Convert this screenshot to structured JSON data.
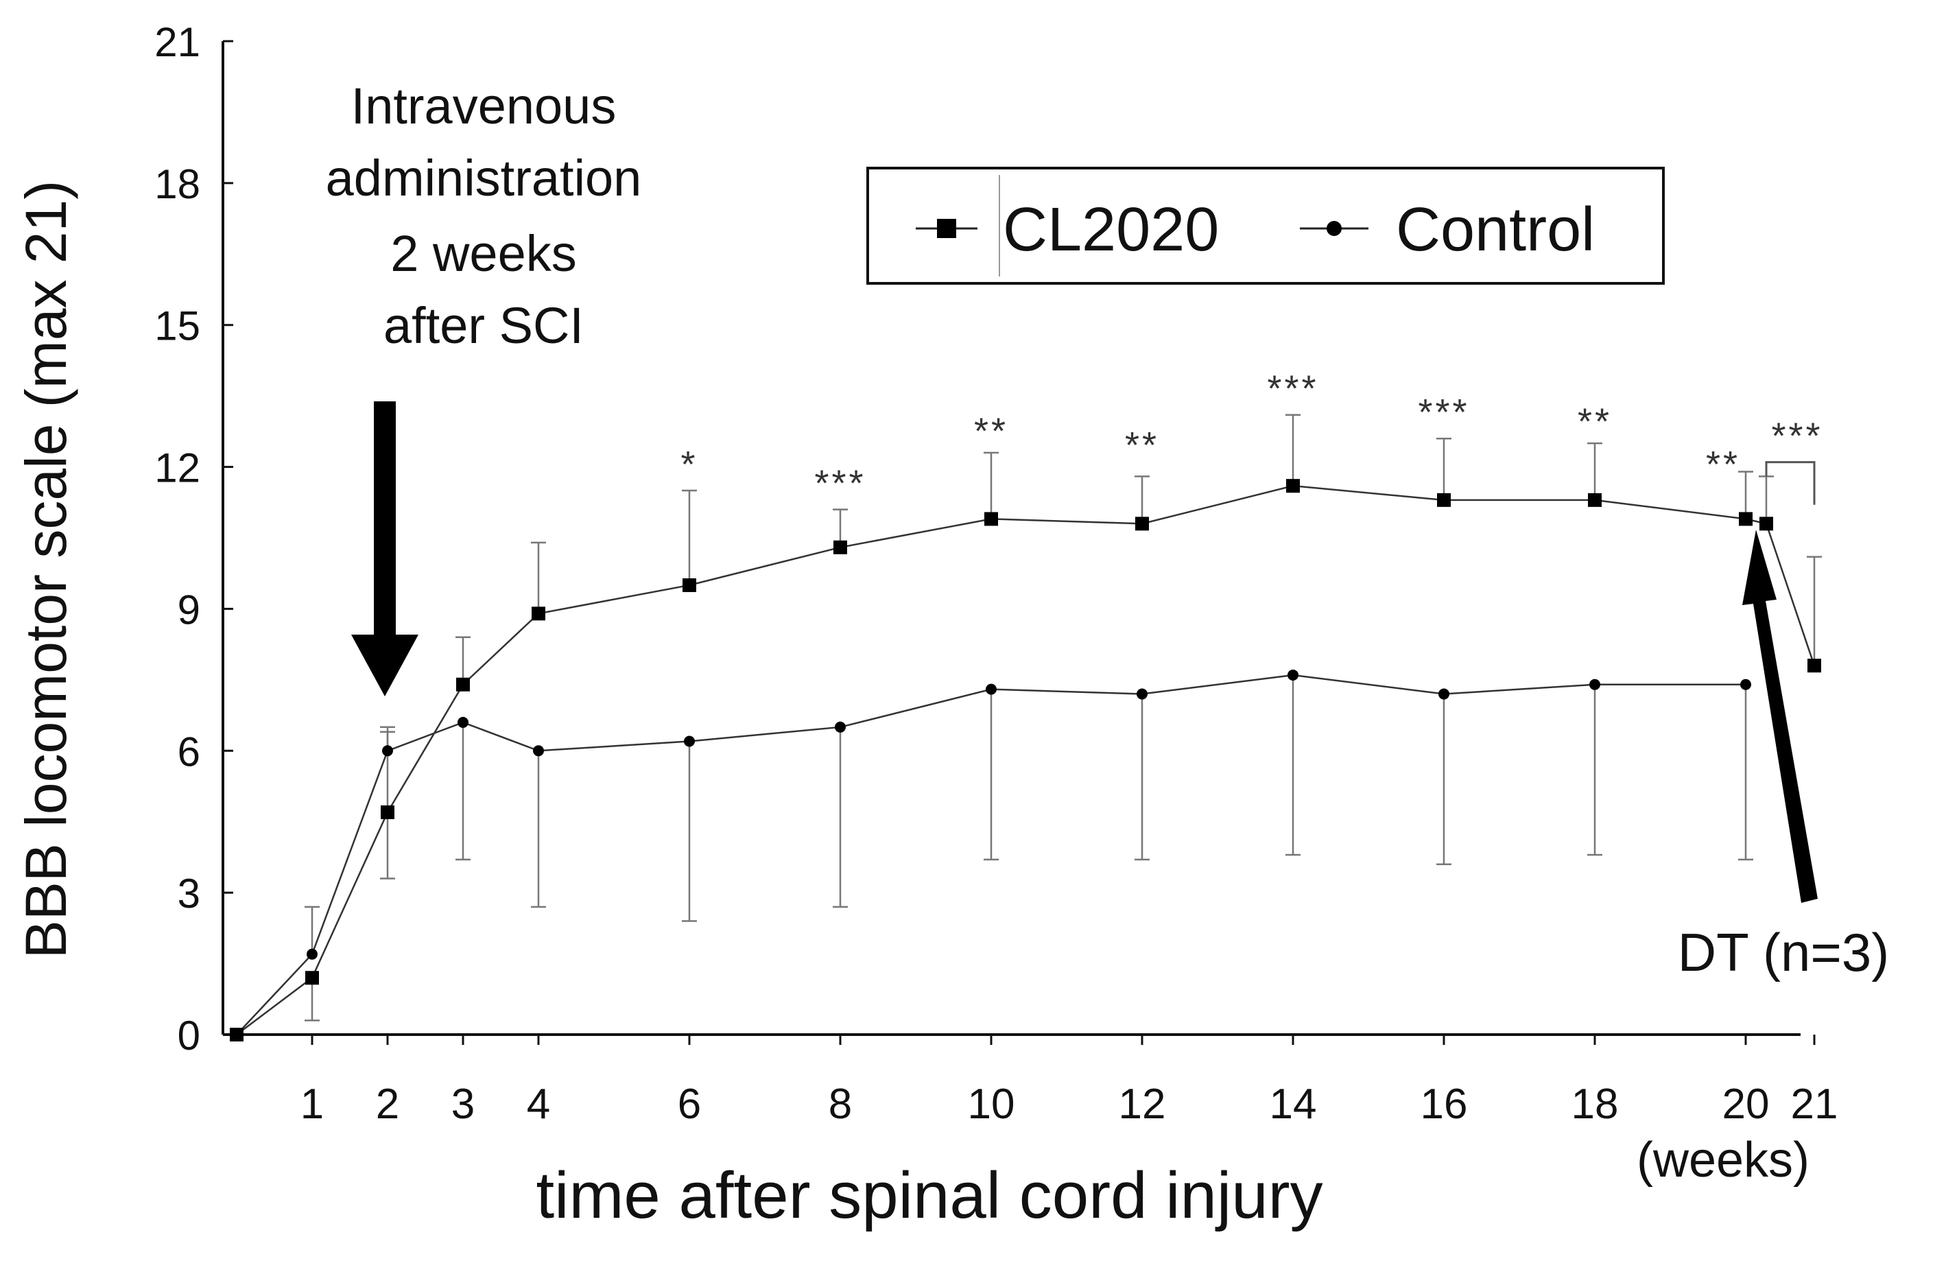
{
  "chart_data": {
    "type": "line",
    "ylabel": "BBB locomotor scale (max 21)",
    "xlabel": "time after spinal cord injury",
    "x_unit_label": "(weeks)",
    "ylim": [
      0,
      21
    ],
    "yticks": [
      0,
      3,
      6,
      9,
      12,
      15,
      18,
      21
    ],
    "ytick_labels": [
      "0",
      "3",
      "6",
      "9",
      "12",
      "15",
      "18",
      "21"
    ],
    "xticks": [
      1,
      2,
      3,
      4,
      6,
      8,
      10,
      12,
      14,
      16,
      18,
      20,
      21
    ],
    "xtick_labels": [
      "1",
      "2",
      "3",
      "4",
      "6",
      "8",
      "10",
      "12",
      "14",
      "16",
      "18",
      "20",
      "21"
    ],
    "legend": {
      "placement": "top-right",
      "entries": [
        "CL2020",
        "Control"
      ]
    },
    "series": [
      {
        "name": "CL2020",
        "marker": "square",
        "x": [
          0,
          1,
          2,
          3,
          4,
          6,
          8,
          10,
          12,
          14,
          16,
          18,
          20,
          20.3,
          21
        ],
        "values": [
          0,
          1.2,
          4.7,
          7.4,
          8.9,
          9.5,
          10.3,
          10.9,
          10.8,
          11.6,
          11.3,
          11.3,
          10.9,
          10.8,
          7.8
        ],
        "err_up": [
          0,
          0,
          1.7,
          1.0,
          1.5,
          2.0,
          0.8,
          1.4,
          1.0,
          1.5,
          1.3,
          1.2,
          1.0,
          1.0,
          2.3
        ],
        "err_down": [
          0,
          0.9,
          1.4,
          0,
          0,
          0,
          0,
          0,
          0,
          0,
          0,
          0,
          0,
          0,
          0
        ]
      },
      {
        "name": "Control",
        "marker": "circle",
        "x": [
          0,
          1,
          2,
          3,
          4,
          6,
          8,
          10,
          12,
          14,
          16,
          18,
          20
        ],
        "values": [
          0,
          1.7,
          6.0,
          6.6,
          6.0,
          6.2,
          6.5,
          7.3,
          7.2,
          7.6,
          7.2,
          7.4,
          7.4
        ],
        "err_up": [
          0,
          1.0,
          0.5,
          0,
          0,
          0,
          0,
          0,
          0,
          0,
          0,
          0,
          0
        ],
        "err_down": [
          0,
          0,
          0,
          2.9,
          3.3,
          3.8,
          3.8,
          3.6,
          3.5,
          3.8,
          3.6,
          3.6,
          3.7
        ]
      }
    ],
    "significance": [
      {
        "x": 6,
        "y": 12.2,
        "label": "*"
      },
      {
        "x": 8,
        "y": 11.8,
        "label": "***"
      },
      {
        "x": 10,
        "y": 12.9,
        "label": "**"
      },
      {
        "x": 12,
        "y": 12.6,
        "label": "**"
      },
      {
        "x": 14,
        "y": 13.8,
        "label": "***"
      },
      {
        "x": 16,
        "y": 13.3,
        "label": "***"
      },
      {
        "x": 18,
        "y": 13.1,
        "label": "**"
      },
      {
        "x": 19.7,
        "y": 12.2,
        "label": "**"
      },
      {
        "x": 20.75,
        "y": 12.8,
        "label": "***"
      }
    ],
    "annotations": {
      "injection_text": [
        "Intravenous",
        "administration",
        "2 weeks",
        "after SCI"
      ],
      "injection_week": 2,
      "dt_label": "DT (n=3)",
      "dt_week": 20.3
    }
  }
}
